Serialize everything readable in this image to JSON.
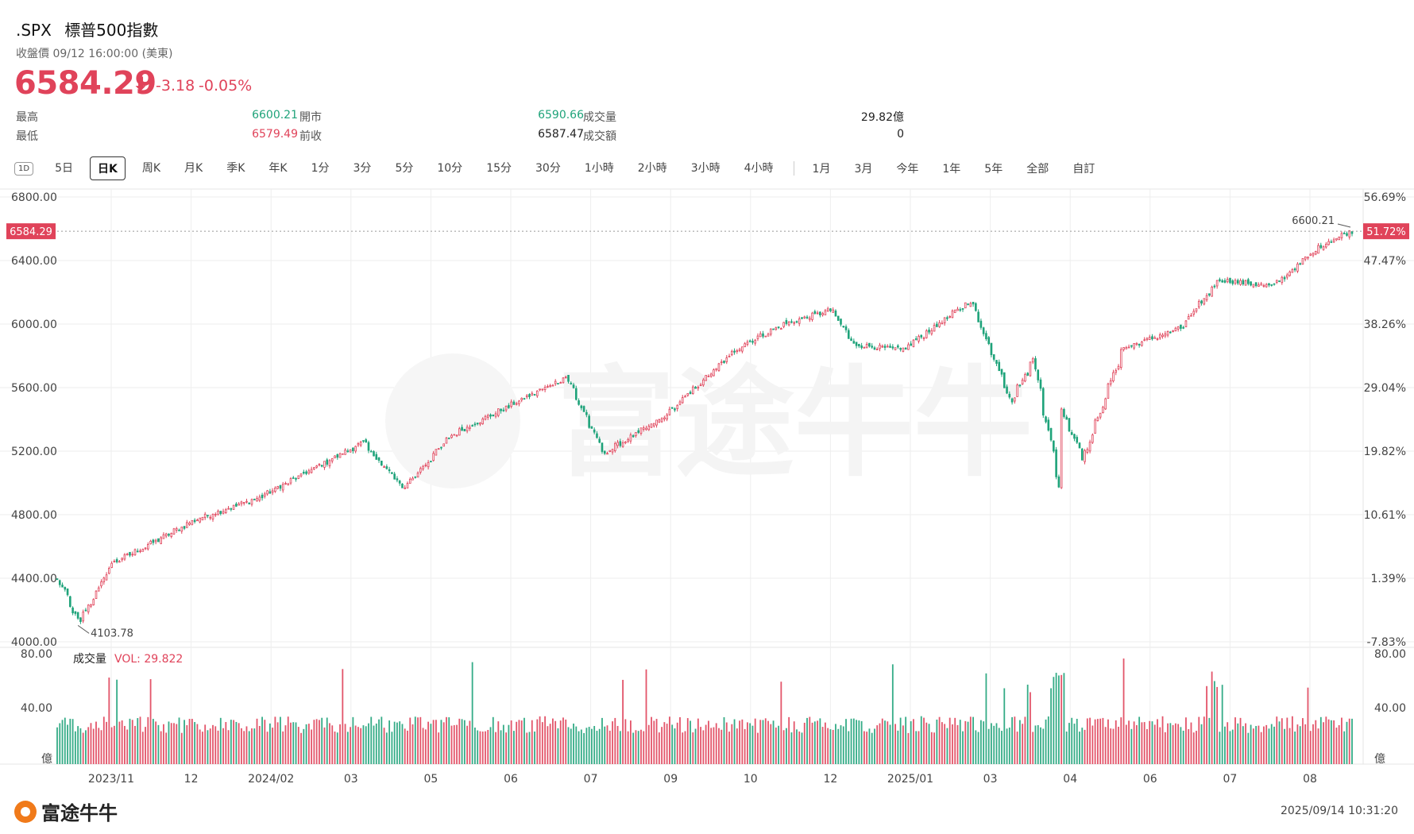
{
  "header": {
    "symbol": ".SPX",
    "name": "標普500指數",
    "status": "收盤價 09/12 16:00:00 (美東)",
    "price": "6584.29",
    "change": "-3.18",
    "change_pct": "-0.05%",
    "stats": [
      {
        "label": "最高",
        "value": "6600.21",
        "color": "green"
      },
      {
        "label": "開市",
        "value": "6590.66",
        "color": "green"
      },
      {
        "label": "成交量",
        "value": "29.82億",
        "color": "dark"
      },
      {
        "label": "最低",
        "value": "6579.49",
        "color": "red"
      },
      {
        "label": "前收",
        "value": "6587.47",
        "color": "dark"
      },
      {
        "label": "成交額",
        "value": "0",
        "color": "dark"
      }
    ]
  },
  "tabs": {
    "period_icon": "1D",
    "items": [
      "5日",
      "日K",
      "周K",
      "月K",
      "季K",
      "年K",
      "1分",
      "3分",
      "5分",
      "10分",
      "15分",
      "30分",
      "1小時",
      "2小時",
      "3小時",
      "4小時"
    ],
    "active": "日K",
    "ranges": [
      "1月",
      "3月",
      "今年",
      "1年",
      "5年",
      "全部",
      "自訂"
    ]
  },
  "colors": {
    "up": "#e0435a",
    "down": "#1fa37a",
    "grid": "#eeeeee"
  },
  "watermark": "富途牛牛",
  "footer": {
    "logo_text": "富途牛牛",
    "timestamp": "2025/09/14 10:31:20"
  },
  "chart_data": {
    "type": "candlestick",
    "price_axis": {
      "ticks": [
        "6800.00",
        "6400.00",
        "6000.00",
        "5600.00",
        "5200.00",
        "4800.00",
        "4400.00",
        "4000.00"
      ],
      "ylim": [
        4000,
        6800
      ]
    },
    "pct_axis": {
      "ticks": [
        "56.69%",
        "47.47%",
        "38.26%",
        "29.04%",
        "19.82%",
        "10.61%",
        "1.39%",
        "-7.83%"
      ]
    },
    "last_price_tag": "6584.29",
    "last_pct_tag": "51.72%",
    "high_annotation": "6600.21",
    "low_annotation": "4103.78",
    "x_labels": [
      "2023/11",
      "12",
      "2024/02",
      "03",
      "05",
      "06",
      "07",
      "09",
      "10",
      "12",
      "2025/01",
      "03",
      "04",
      "06",
      "07",
      "08"
    ],
    "close_keypoints": [
      {
        "date": "2023-10-16",
        "close": 4390
      },
      {
        "date": "2023-10-27",
        "close": 4117
      },
      {
        "date": "2023-11-14",
        "close": 4495
      },
      {
        "date": "2023-12-01",
        "close": 4594
      },
      {
        "date": "2023-12-29",
        "close": 4770
      },
      {
        "date": "2024-02-01",
        "close": 4906
      },
      {
        "date": "2024-03-28",
        "close": 5254
      },
      {
        "date": "2024-04-19",
        "close": 4967
      },
      {
        "date": "2024-05-15",
        "close": 5300
      },
      {
        "date": "2024-07-16",
        "close": 5667
      },
      {
        "date": "2024-08-05",
        "close": 5186
      },
      {
        "date": "2024-09-06",
        "close": 5408
      },
      {
        "date": "2024-10-18",
        "close": 5864
      },
      {
        "date": "2024-11-11",
        "close": 6001
      },
      {
        "date": "2024-12-06",
        "close": 6090
      },
      {
        "date": "2024-12-18",
        "close": 5872
      },
      {
        "date": "2025-01-13",
        "close": 5836
      },
      {
        "date": "2025-02-19",
        "close": 6144
      },
      {
        "date": "2025-03-13",
        "close": 5521
      },
      {
        "date": "2025-03-25",
        "close": 5776
      },
      {
        "date": "2025-04-08",
        "close": 4982
      },
      {
        "date": "2025-04-09",
        "close": 5457
      },
      {
        "date": "2025-04-21",
        "close": 5158
      },
      {
        "date": "2025-05-12",
        "close": 5844
      },
      {
        "date": "2025-06-13",
        "close": 5977
      },
      {
        "date": "2025-07-03",
        "close": 6279
      },
      {
        "date": "2025-08-01",
        "close": 6238
      },
      {
        "date": "2025-08-28",
        "close": 6501
      },
      {
        "date": "2025-09-12",
        "close": 6584
      }
    ],
    "volume": {
      "label": "成交量",
      "vol_text": "VOL: 29.822",
      "ticks": [
        "80.00",
        "40.00",
        "億"
      ],
      "ylim": [
        0,
        80
      ]
    }
  }
}
